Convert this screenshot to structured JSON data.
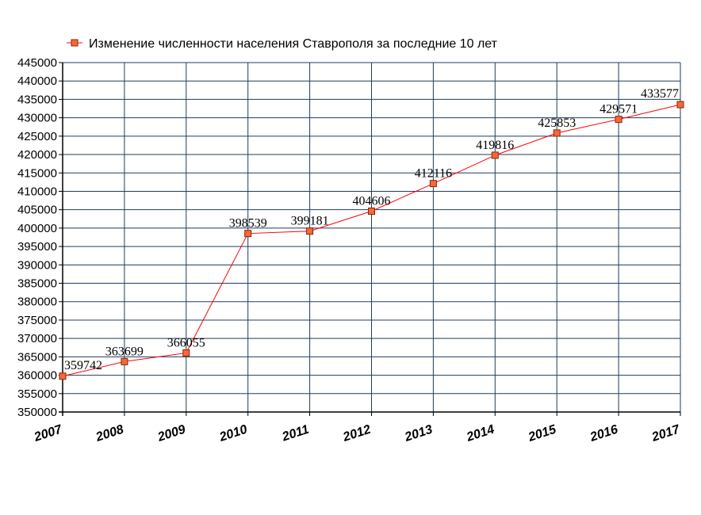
{
  "chart_data": {
    "type": "line",
    "title": "",
    "xlabel": "",
    "ylabel": "",
    "legend_position": "top-left",
    "grid": true,
    "x": [
      "2007",
      "2008",
      "2009",
      "2010",
      "2011",
      "2012",
      "2013",
      "2014",
      "2015",
      "2016",
      "2017"
    ],
    "y_ticks": [
      "350000",
      "355000",
      "360000",
      "365000",
      "370000",
      "375000",
      "380000",
      "385000",
      "390000",
      "395000",
      "400000",
      "405000",
      "410000",
      "415000",
      "420000",
      "425000",
      "430000",
      "435000",
      "440000",
      "445000"
    ],
    "ylim": [
      350000,
      445000
    ],
    "series": [
      {
        "name": "Изменение численности населения Ставрополя за последние 10 лет",
        "color": "#ff0000",
        "marker_color": "#ff6633",
        "values": [
          359742,
          363699,
          366055,
          398539,
          399181,
          404606,
          412116,
          419816,
          425853,
          429571,
          433577
        ],
        "labels": [
          "359742",
          "363699",
          "366055",
          "398539",
          "399181",
          "404606",
          "412116",
          "419816",
          "425853",
          "429571",
          "433577"
        ]
      }
    ]
  },
  "colors": {
    "grid": "#1f3d5c",
    "axis": "#000000",
    "line": "#ff0000",
    "marker_fill": "#ff6633",
    "marker_stroke": "#7a2a10"
  }
}
